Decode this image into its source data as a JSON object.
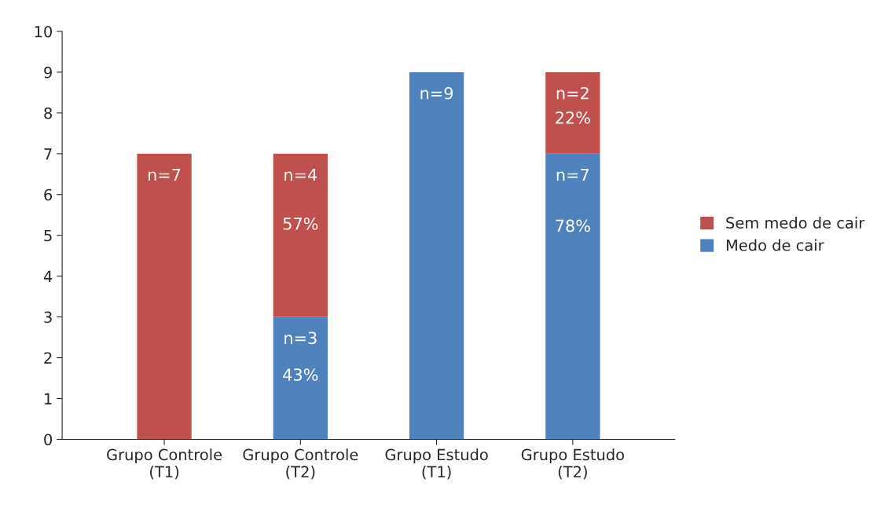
{
  "chart_data": {
    "type": "bar",
    "stacked": true,
    "categories": [
      "Grupo Controle\n(T1)",
      "Grupo Controle\n(T2)",
      "Grupo Estudo\n(T1)",
      "Grupo Estudo\n(T2)"
    ],
    "series": [
      {
        "name": "Medo de cair",
        "color": "#4f81bd",
        "values": [
          0,
          3,
          9,
          7
        ],
        "value_labels": [
          null,
          "n=3\n43%",
          "n=9",
          "n=7\n78%"
        ]
      },
      {
        "name": "Sem medo de cair",
        "color": "#c0504d",
        "values": [
          7,
          4,
          0,
          2
        ],
        "value_labels": [
          "n=7",
          "n=4\n57%",
          null,
          "n=2\n22%"
        ]
      }
    ],
    "ylim": [
      0,
      10
    ],
    "yticks": [
      0,
      1,
      2,
      3,
      4,
      5,
      6,
      7,
      8,
      9,
      10
    ],
    "grid": false,
    "legend": "right"
  }
}
